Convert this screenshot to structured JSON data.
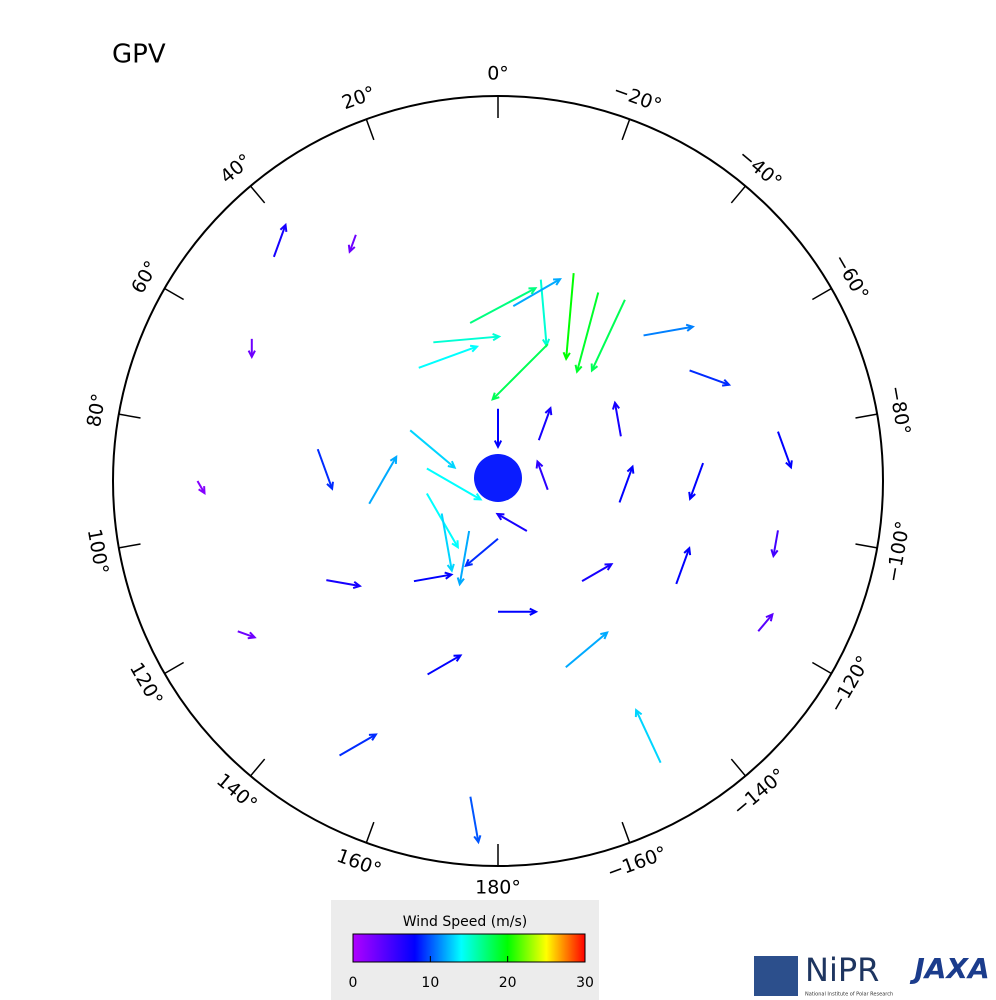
{
  "map": {
    "title": "GPV",
    "longitude_ticks": [
      {
        "value": 0,
        "label": "0°"
      },
      {
        "value": 20,
        "label": "20°"
      },
      {
        "value": 40,
        "label": "40°"
      },
      {
        "value": 60,
        "label": "60°"
      },
      {
        "value": 80,
        "label": "80°"
      },
      {
        "value": 100,
        "label": "100°"
      },
      {
        "value": 120,
        "label": "120°"
      },
      {
        "value": 140,
        "label": "140°"
      },
      {
        "value": 160,
        "label": "160°"
      },
      {
        "value": 180,
        "label": "180°"
      },
      {
        "value": -160,
        "label": "−160°"
      },
      {
        "value": -140,
        "label": "−140°"
      },
      {
        "value": -120,
        "label": "−120°"
      },
      {
        "value": -100,
        "label": "−100°"
      },
      {
        "value": -80,
        "label": "−80°"
      },
      {
        "value": -60,
        "label": "−60°"
      },
      {
        "value": -40,
        "label": "−40°"
      },
      {
        "value": -20,
        "label": "−20°"
      }
    ],
    "colorbar": {
      "title": "Wind Speed (m/s)",
      "lim": [
        0,
        30
      ],
      "ticks": [
        0,
        10,
        20,
        30
      ],
      "colormap": [
        [
          0,
          "#b000ff"
        ],
        [
          8,
          "#0000ff"
        ],
        [
          14,
          "#00ffff"
        ],
        [
          20,
          "#00ff00"
        ],
        [
          25,
          "#ffff00"
        ],
        [
          30,
          "#ff0000"
        ]
      ]
    },
    "vectors": [
      {
        "lon": -20,
        "lat": 60,
        "speed": 20,
        "heading": 185
      },
      {
        "lon": -28,
        "lat": 61,
        "speed": 19,
        "heading": 195
      },
      {
        "lon": -35,
        "lat": 60,
        "speed": 18,
        "heading": 205
      },
      {
        "lon": -12,
        "lat": 62,
        "speed": 15,
        "heading": 175
      },
      {
        "lon": 10,
        "lat": 68,
        "speed": 17,
        "heading": 62
      },
      {
        "lon": 25,
        "lat": 69,
        "speed": 15,
        "heading": 85
      },
      {
        "lon": 35,
        "lat": 71,
        "speed": 14,
        "heading": 70
      },
      {
        "lon": -5,
        "lat": 66,
        "speed": 12,
        "heading": 60
      },
      {
        "lon": -45,
        "lat": 62,
        "speed": 11,
        "heading": 80
      },
      {
        "lon": -60,
        "lat": 60,
        "speed": 9,
        "heading": 110
      },
      {
        "lon": -20,
        "lat": 70,
        "speed": 18,
        "heading": 225
      },
      {
        "lon": 60,
        "lat": 76,
        "speed": 13,
        "heading": 130
      },
      {
        "lon": 80,
        "lat": 80,
        "speed": 14,
        "heading": 120
      },
      {
        "lon": 100,
        "lat": 80,
        "speed": 14,
        "heading": 150
      },
      {
        "lon": 120,
        "lat": 81,
        "speed": 13,
        "heading": 170
      },
      {
        "lon": 150,
        "lat": 82,
        "speed": 12,
        "heading": 190
      },
      {
        "lon": 180,
        "lat": 82,
        "speed": 9,
        "heading": 230
      },
      {
        "lon": -150,
        "lat": 82,
        "speed": 7,
        "heading": 300
      },
      {
        "lon": -100,
        "lat": 83,
        "speed": 6,
        "heading": 340
      },
      {
        "lon": -45,
        "lat": 82,
        "speed": 7,
        "heading": 20
      },
      {
        "lon": 0,
        "lat": 80,
        "speed": 8,
        "heading": 180
      },
      {
        "lon": 100,
        "lat": 72,
        "speed": 12,
        "heading": 30
      },
      {
        "lon": 140,
        "lat": 72,
        "speed": 8,
        "heading": 80
      },
      {
        "lon": 180,
        "lat": 72,
        "speed": 8,
        "heading": 90
      },
      {
        "lon": -140,
        "lat": 72,
        "speed": 7,
        "heading": 60
      },
      {
        "lon": -100,
        "lat": 73,
        "speed": 8,
        "heading": 20
      },
      {
        "lon": -70,
        "lat": 72,
        "speed": 7,
        "heading": 350
      },
      {
        "lon": 80,
        "lat": 65,
        "speed": 9,
        "heading": 160
      },
      {
        "lon": 120,
        "lat": 63,
        "speed": 7,
        "heading": 100
      },
      {
        "lon": 160,
        "lat": 62,
        "speed": 8,
        "heading": 60
      },
      {
        "lon": -160,
        "lat": 63,
        "speed": 12,
        "heading": 50
      },
      {
        "lon": -120,
        "lat": 62,
        "speed": 8,
        "heading": 20
      },
      {
        "lon": -85,
        "lat": 62,
        "speed": 8,
        "heading": 200
      },
      {
        "lon": 60,
        "lat": 52,
        "speed": 3,
        "heading": 180
      },
      {
        "lon": 90,
        "lat": 50,
        "speed": 2,
        "heading": 150
      },
      {
        "lon": 120,
        "lat": 50,
        "speed": 3,
        "heading": 110
      },
      {
        "lon": 150,
        "lat": 48,
        "speed": 9,
        "heading": 60
      },
      {
        "lon": 175,
        "lat": 48,
        "speed": 10,
        "heading": 170
      },
      {
        "lon": -150,
        "lat": 47,
        "speed": 13,
        "heading": 335
      },
      {
        "lon": -120,
        "lat": 50,
        "speed": 4,
        "heading": 40
      },
      {
        "lon": -100,
        "lat": 52,
        "speed": 5,
        "heading": 190
      },
      {
        "lon": -80,
        "lat": 52,
        "speed": 8,
        "heading": 160
      },
      {
        "lon": 30,
        "lat": 52,
        "speed": 3,
        "heading": 200
      },
      {
        "lon": 45,
        "lat": 48,
        "speed": 7,
        "heading": 20
      }
    ],
    "logos": {
      "nipr": "NiPR",
      "nipr_full": "National Institute of Polar Research",
      "jaxa": "JAXA"
    }
  }
}
